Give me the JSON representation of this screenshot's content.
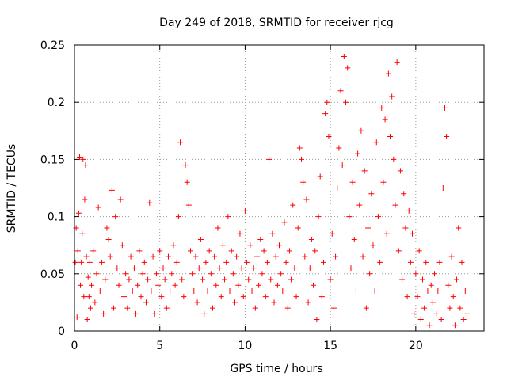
{
  "chart_data": {
    "type": "scatter",
    "title": "Day 249 of 2018, SRMTID for receiver rjcg",
    "xlabel": "GPS time / hours",
    "ylabel": "SRMTID / TECUs",
    "xlim": [
      0,
      24
    ],
    "ylim": [
      0,
      0.25
    ],
    "xticks": [
      0,
      5,
      10,
      15,
      20
    ],
    "yticks": [
      0,
      0.05,
      0.1,
      0.15,
      0.2,
      0.25
    ],
    "xtick_labels": [
      "0",
      "5",
      "10",
      "15",
      "20"
    ],
    "ytick_labels": [
      "0",
      "0.05",
      "0.1",
      "0.15",
      "0.2",
      "0.25"
    ],
    "grid": true,
    "marker": "plus",
    "color": "#ff0000",
    "points": [
      [
        0.05,
        0.06
      ],
      [
        0.1,
        0.09
      ],
      [
        0.15,
        0.012
      ],
      [
        0.2,
        0.07
      ],
      [
        0.25,
        0.103
      ],
      [
        0.3,
        0.152
      ],
      [
        0.35,
        0.04
      ],
      [
        0.4,
        0.06
      ],
      [
        0.45,
        0.085
      ],
      [
        0.5,
        0.15
      ],
      [
        0.55,
        0.03
      ],
      [
        0.6,
        0.115
      ],
      [
        0.65,
        0.145
      ],
      [
        0.7,
        0.065
      ],
      [
        0.75,
        0.01
      ],
      [
        0.8,
        0.047
      ],
      [
        0.85,
        0.03
      ],
      [
        0.9,
        0.06
      ],
      [
        0.95,
        0.02
      ],
      [
        1.0,
        0.04
      ],
      [
        1.1,
        0.07
      ],
      [
        1.2,
        0.025
      ],
      [
        1.3,
        0.05
      ],
      [
        1.4,
        0.108
      ],
      [
        1.5,
        0.035
      ],
      [
        1.6,
        0.06
      ],
      [
        1.7,
        0.015
      ],
      [
        1.8,
        0.045
      ],
      [
        1.9,
        0.09
      ],
      [
        2.0,
        0.08
      ],
      [
        2.1,
        0.065
      ],
      [
        2.2,
        0.123
      ],
      [
        2.3,
        0.02
      ],
      [
        2.4,
        0.1
      ],
      [
        2.5,
        0.055
      ],
      [
        2.6,
        0.04
      ],
      [
        2.7,
        0.115
      ],
      [
        2.8,
        0.075
      ],
      [
        2.9,
        0.03
      ],
      [
        3.0,
        0.05
      ],
      [
        3.1,
        0.02
      ],
      [
        3.2,
        0.045
      ],
      [
        3.3,
        0.065
      ],
      [
        3.4,
        0.035
      ],
      [
        3.5,
        0.055
      ],
      [
        3.6,
        0.015
      ],
      [
        3.7,
        0.04
      ],
      [
        3.8,
        0.07
      ],
      [
        3.9,
        0.03
      ],
      [
        4.0,
        0.05
      ],
      [
        4.1,
        0.06
      ],
      [
        4.2,
        0.025
      ],
      [
        4.3,
        0.045
      ],
      [
        4.4,
        0.112
      ],
      [
        4.5,
        0.035
      ],
      [
        4.6,
        0.065
      ],
      [
        4.7,
        0.015
      ],
      [
        4.8,
        0.05
      ],
      [
        4.9,
        0.04
      ],
      [
        5.0,
        0.07
      ],
      [
        5.1,
        0.03
      ],
      [
        5.2,
        0.055
      ],
      [
        5.3,
        0.045
      ],
      [
        5.4,
        0.02
      ],
      [
        5.5,
        0.065
      ],
      [
        5.6,
        0.035
      ],
      [
        5.7,
        0.05
      ],
      [
        5.8,
        0.075
      ],
      [
        5.9,
        0.04
      ],
      [
        6.0,
        0.06
      ],
      [
        6.1,
        0.1
      ],
      [
        6.2,
        0.165
      ],
      [
        6.3,
        0.045
      ],
      [
        6.4,
        0.03
      ],
      [
        6.5,
        0.145
      ],
      [
        6.6,
        0.13
      ],
      [
        6.7,
        0.11
      ],
      [
        6.8,
        0.07
      ],
      [
        6.9,
        0.05
      ],
      [
        7.0,
        0.035
      ],
      [
        7.1,
        0.065
      ],
      [
        7.2,
        0.025
      ],
      [
        7.3,
        0.055
      ],
      [
        7.4,
        0.08
      ],
      [
        7.5,
        0.045
      ],
      [
        7.6,
        0.015
      ],
      [
        7.7,
        0.06
      ],
      [
        7.8,
        0.035
      ],
      [
        7.9,
        0.07
      ],
      [
        8.0,
        0.05
      ],
      [
        8.1,
        0.02
      ],
      [
        8.2,
        0.065
      ],
      [
        8.3,
        0.04
      ],
      [
        8.4,
        0.09
      ],
      [
        8.5,
        0.055
      ],
      [
        8.6,
        0.03
      ],
      [
        8.7,
        0.075
      ],
      [
        8.8,
        0.045
      ],
      [
        8.9,
        0.06
      ],
      [
        9.0,
        0.1
      ],
      [
        9.1,
        0.035
      ],
      [
        9.2,
        0.07
      ],
      [
        9.3,
        0.05
      ],
      [
        9.4,
        0.025
      ],
      [
        9.5,
        0.065
      ],
      [
        9.6,
        0.04
      ],
      [
        9.7,
        0.085
      ],
      [
        9.8,
        0.055
      ],
      [
        9.9,
        0.03
      ],
      [
        10.0,
        0.105
      ],
      [
        10.1,
        0.06
      ],
      [
        10.2,
        0.045
      ],
      [
        10.3,
        0.075
      ],
      [
        10.4,
        0.035
      ],
      [
        10.5,
        0.055
      ],
      [
        10.6,
        0.02
      ],
      [
        10.7,
        0.065
      ],
      [
        10.8,
        0.04
      ],
      [
        10.9,
        0.08
      ],
      [
        11.0,
        0.05
      ],
      [
        11.1,
        0.07
      ],
      [
        11.2,
        0.03
      ],
      [
        11.3,
        0.06
      ],
      [
        11.4,
        0.15
      ],
      [
        11.5,
        0.045
      ],
      [
        11.6,
        0.085
      ],
      [
        11.7,
        0.025
      ],
      [
        11.8,
        0.065
      ],
      [
        11.9,
        0.04
      ],
      [
        12.0,
        0.075
      ],
      [
        12.1,
        0.05
      ],
      [
        12.2,
        0.035
      ],
      [
        12.3,
        0.095
      ],
      [
        12.4,
        0.06
      ],
      [
        12.5,
        0.02
      ],
      [
        12.6,
        0.07
      ],
      [
        12.7,
        0.045
      ],
      [
        12.8,
        0.11
      ],
      [
        12.9,
        0.055
      ],
      [
        13.0,
        0.03
      ],
      [
        13.1,
        0.09
      ],
      [
        13.2,
        0.16
      ],
      [
        13.3,
        0.15
      ],
      [
        13.4,
        0.13
      ],
      [
        13.5,
        0.065
      ],
      [
        13.6,
        0.115
      ],
      [
        13.7,
        0.025
      ],
      [
        13.8,
        0.055
      ],
      [
        13.9,
        0.08
      ],
      [
        14.0,
        0.04
      ],
      [
        14.1,
        0.07
      ],
      [
        14.2,
        0.01
      ],
      [
        14.3,
        0.1
      ],
      [
        14.4,
        0.135
      ],
      [
        14.5,
        0.03
      ],
      [
        14.6,
        0.06
      ],
      [
        14.7,
        0.19
      ],
      [
        14.8,
        0.2
      ],
      [
        14.9,
        0.17
      ],
      [
        15.0,
        0.045
      ],
      [
        15.1,
        0.085
      ],
      [
        15.2,
        0.02
      ],
      [
        15.3,
        0.065
      ],
      [
        15.4,
        0.125
      ],
      [
        15.5,
        0.16
      ],
      [
        15.6,
        0.21
      ],
      [
        15.7,
        0.145
      ],
      [
        15.8,
        0.24
      ],
      [
        15.9,
        0.2
      ],
      [
        16.0,
        0.23
      ],
      [
        16.1,
        0.1
      ],
      [
        16.2,
        0.055
      ],
      [
        16.3,
        0.13
      ],
      [
        16.4,
        0.08
      ],
      [
        16.5,
        0.035
      ],
      [
        16.6,
        0.155
      ],
      [
        16.7,
        0.11
      ],
      [
        16.8,
        0.175
      ],
      [
        16.9,
        0.065
      ],
      [
        17.0,
        0.14
      ],
      [
        17.1,
        0.02
      ],
      [
        17.2,
        0.09
      ],
      [
        17.3,
        0.05
      ],
      [
        17.4,
        0.12
      ],
      [
        17.5,
        0.075
      ],
      [
        17.6,
        0.035
      ],
      [
        17.7,
        0.165
      ],
      [
        17.8,
        0.1
      ],
      [
        17.9,
        0.06
      ],
      [
        18.0,
        0.195
      ],
      [
        18.1,
        0.13
      ],
      [
        18.2,
        0.185
      ],
      [
        18.3,
        0.085
      ],
      [
        18.4,
        0.225
      ],
      [
        18.5,
        0.17
      ],
      [
        18.6,
        0.205
      ],
      [
        18.7,
        0.15
      ],
      [
        18.8,
        0.11
      ],
      [
        18.9,
        0.235
      ],
      [
        19.0,
        0.07
      ],
      [
        19.1,
        0.14
      ],
      [
        19.2,
        0.045
      ],
      [
        19.3,
        0.12
      ],
      [
        19.4,
        0.09
      ],
      [
        19.5,
        0.03
      ],
      [
        19.6,
        0.105
      ],
      [
        19.7,
        0.06
      ],
      [
        19.8,
        0.085
      ],
      [
        19.9,
        0.015
      ],
      [
        20.0,
        0.05
      ],
      [
        20.1,
        0.03
      ],
      [
        20.2,
        0.07
      ],
      [
        20.3,
        0.01
      ],
      [
        20.4,
        0.045
      ],
      [
        20.5,
        0.02
      ],
      [
        20.6,
        0.06
      ],
      [
        20.7,
        0.035
      ],
      [
        20.8,
        0.005
      ],
      [
        20.9,
        0.04
      ],
      [
        21.0,
        0.025
      ],
      [
        21.1,
        0.05
      ],
      [
        21.2,
        0.015
      ],
      [
        21.3,
        0.035
      ],
      [
        21.4,
        0.06
      ],
      [
        21.5,
        0.01
      ],
      [
        21.6,
        0.125
      ],
      [
        21.7,
        0.195
      ],
      [
        21.8,
        0.17
      ],
      [
        21.9,
        0.04
      ],
      [
        22.0,
        0.02
      ],
      [
        22.1,
        0.065
      ],
      [
        22.2,
        0.03
      ],
      [
        22.3,
        0.005
      ],
      [
        22.4,
        0.045
      ],
      [
        22.5,
        0.09
      ],
      [
        22.6,
        0.02
      ],
      [
        22.7,
        0.06
      ],
      [
        22.8,
        0.01
      ],
      [
        22.9,
        0.035
      ],
      [
        23.0,
        0.015
      ]
    ]
  }
}
